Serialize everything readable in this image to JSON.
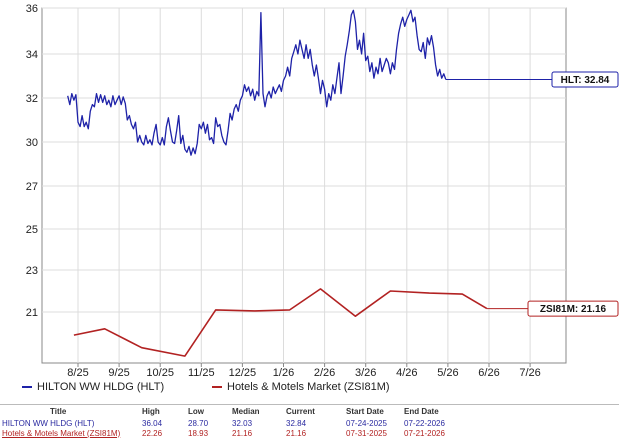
{
  "chart_data": {
    "type": "line",
    "x_ticks": [
      "8/25",
      "9/25",
      "10/25",
      "11/25",
      "12/25",
      "1/26",
      "2/26",
      "3/26",
      "4/26",
      "5/26",
      "6/26",
      "7/26"
    ],
    "y_ticks": [
      "21",
      "23",
      "25",
      "27",
      "30",
      "32",
      "34",
      "36"
    ],
    "ylim": [
      19,
      36
    ],
    "grid": true,
    "legend_position": "bottom",
    "series": [
      {
        "name": "HILTON WW HLDG (HLT)",
        "color": "#1e22a8",
        "callout": "HLT: 32.84",
        "points": [
          [
            -0.25,
            32.1
          ],
          [
            -0.2,
            31.7
          ],
          [
            -0.15,
            32.2
          ],
          [
            -0.1,
            31.9
          ],
          [
            -0.05,
            32.15
          ],
          [
            0.0,
            30.9
          ],
          [
            0.05,
            30.7
          ],
          [
            0.1,
            31.2
          ],
          [
            0.15,
            30.7
          ],
          [
            0.2,
            30.9
          ],
          [
            0.25,
            30.6
          ],
          [
            0.3,
            31.4
          ],
          [
            0.35,
            31.7
          ],
          [
            0.4,
            31.6
          ],
          [
            0.45,
            32.2
          ],
          [
            0.5,
            31.8
          ],
          [
            0.55,
            32.15
          ],
          [
            0.6,
            31.8
          ],
          [
            0.65,
            32.1
          ],
          [
            0.7,
            31.7
          ],
          [
            0.75,
            31.9
          ],
          [
            0.8,
            31.6
          ],
          [
            0.85,
            32.1
          ],
          [
            0.9,
            31.7
          ],
          [
            0.95,
            31.9
          ],
          [
            1.0,
            32.1
          ],
          [
            1.05,
            31.7
          ],
          [
            1.1,
            32.05
          ],
          [
            1.15,
            31.75
          ],
          [
            1.2,
            31.0
          ],
          [
            1.25,
            31.2
          ],
          [
            1.3,
            30.8
          ],
          [
            1.35,
            30.6
          ],
          [
            1.4,
            30.9
          ],
          [
            1.45,
            30.0
          ],
          [
            1.5,
            30.3
          ],
          [
            1.55,
            30.0
          ],
          [
            1.6,
            29.8
          ],
          [
            1.65,
            30.3
          ],
          [
            1.7,
            29.9
          ],
          [
            1.75,
            30.1
          ],
          [
            1.8,
            29.8
          ],
          [
            1.85,
            30.4
          ],
          [
            1.9,
            30.8
          ],
          [
            1.95,
            30.0
          ],
          [
            2.0,
            29.8
          ],
          [
            2.05,
            30.2
          ],
          [
            2.1,
            29.8
          ],
          [
            2.15,
            30.7
          ],
          [
            2.2,
            31.1
          ],
          [
            2.25,
            30.5
          ],
          [
            2.3,
            30.0
          ],
          [
            2.35,
            29.9
          ],
          [
            2.4,
            30.5
          ],
          [
            2.45,
            31.2
          ],
          [
            2.5,
            29.9
          ],
          [
            2.55,
            30.3
          ],
          [
            2.6,
            29.5
          ],
          [
            2.65,
            29.3
          ],
          [
            2.7,
            29.7
          ],
          [
            2.75,
            29.1
          ],
          [
            2.8,
            29.6
          ],
          [
            2.85,
            29.2
          ],
          [
            2.9,
            29.9
          ],
          [
            2.95,
            30.8
          ],
          [
            3.0,
            30.6
          ],
          [
            3.05,
            30.9
          ],
          [
            3.1,
            30.4
          ],
          [
            3.15,
            30.8
          ],
          [
            3.2,
            30.1
          ],
          [
            3.25,
            30.2
          ],
          [
            3.3,
            29.9
          ],
          [
            3.35,
            31.1
          ],
          [
            3.4,
            30.7
          ],
          [
            3.45,
            30.8
          ],
          [
            3.5,
            30.3
          ],
          [
            3.55,
            30.0
          ],
          [
            3.6,
            29.8
          ],
          [
            3.65,
            30.5
          ],
          [
            3.7,
            31.3
          ],
          [
            3.75,
            31.0
          ],
          [
            3.8,
            31.5
          ],
          [
            3.85,
            31.7
          ],
          [
            3.9,
            31.4
          ],
          [
            3.95,
            31.9
          ],
          [
            4.0,
            32.1
          ],
          [
            4.05,
            32.6
          ],
          [
            4.1,
            32.3
          ],
          [
            4.15,
            32.5
          ],
          [
            4.2,
            32.1
          ],
          [
            4.25,
            32.4
          ],
          [
            4.3,
            31.9
          ],
          [
            4.35,
            32.3
          ],
          [
            4.4,
            32.1
          ],
          [
            4.45,
            35.8
          ],
          [
            4.5,
            32.2
          ],
          [
            4.55,
            31.6
          ],
          [
            4.6,
            32.1
          ],
          [
            4.65,
            32.3
          ],
          [
            4.7,
            32.0
          ],
          [
            4.75,
            32.5
          ],
          [
            4.8,
            32.2
          ],
          [
            4.85,
            32.4
          ],
          [
            4.9,
            32.6
          ],
          [
            4.95,
            32.3
          ],
          [
            5.0,
            32.8
          ],
          [
            5.05,
            33.0
          ],
          [
            5.1,
            33.4
          ],
          [
            5.15,
            33.0
          ],
          [
            5.2,
            33.8
          ],
          [
            5.25,
            34.1
          ],
          [
            5.3,
            34.4
          ],
          [
            5.35,
            34.0
          ],
          [
            5.4,
            34.6
          ],
          [
            5.45,
            34.2
          ],
          [
            5.5,
            33.8
          ],
          [
            5.55,
            34.4
          ],
          [
            5.6,
            33.8
          ],
          [
            5.65,
            34.2
          ],
          [
            5.7,
            33.5
          ],
          [
            5.75,
            33.0
          ],
          [
            5.8,
            33.5
          ],
          [
            5.85,
            32.9
          ],
          [
            5.9,
            32.2
          ],
          [
            5.95,
            32.8
          ],
          [
            6.0,
            32.4
          ],
          [
            6.05,
            31.6
          ],
          [
            6.1,
            32.2
          ],
          [
            6.15,
            31.9
          ],
          [
            6.2,
            32.6
          ],
          [
            6.25,
            32.2
          ],
          [
            6.3,
            32.9
          ],
          [
            6.35,
            33.6
          ],
          [
            6.4,
            32.2
          ],
          [
            6.45,
            33.0
          ],
          [
            6.5,
            33.9
          ],
          [
            6.55,
            34.4
          ],
          [
            6.6,
            35.0
          ],
          [
            6.65,
            35.7
          ],
          [
            6.7,
            35.9
          ],
          [
            6.75,
            35.4
          ],
          [
            6.8,
            34.2
          ],
          [
            6.85,
            34.6
          ],
          [
            6.9,
            34.0
          ],
          [
            6.95,
            34.9
          ],
          [
            7.0,
            33.7
          ],
          [
            7.05,
            33.9
          ],
          [
            7.1,
            33.2
          ],
          [
            7.15,
            33.6
          ],
          [
            7.2,
            32.9
          ],
          [
            7.25,
            33.4
          ],
          [
            7.3,
            33.1
          ],
          [
            7.35,
            33.8
          ],
          [
            7.4,
            33.2
          ],
          [
            7.45,
            33.5
          ],
          [
            7.5,
            33.8
          ],
          [
            7.55,
            33.6
          ],
          [
            7.6,
            33.1
          ],
          [
            7.65,
            33.6
          ],
          [
            7.7,
            33.3
          ],
          [
            7.75,
            34.2
          ],
          [
            7.8,
            34.9
          ],
          [
            7.85,
            35.3
          ],
          [
            7.9,
            35.6
          ],
          [
            7.95,
            35.2
          ],
          [
            8.0,
            35.5
          ],
          [
            8.05,
            35.7
          ],
          [
            8.1,
            35.9
          ],
          [
            8.15,
            35.4
          ],
          [
            8.2,
            35.6
          ],
          [
            8.25,
            34.8
          ],
          [
            8.3,
            34.2
          ],
          [
            8.35,
            34.1
          ],
          [
            8.4,
            34.5
          ],
          [
            8.45,
            33.8
          ],
          [
            8.5,
            34.7
          ],
          [
            8.55,
            34.4
          ],
          [
            8.6,
            34.8
          ],
          [
            8.65,
            34.3
          ],
          [
            8.7,
            33.5
          ],
          [
            8.75,
            33.0
          ],
          [
            8.8,
            33.3
          ],
          [
            8.85,
            32.9
          ],
          [
            8.9,
            33.1
          ],
          [
            8.95,
            32.84
          ]
        ]
      },
      {
        "name": "Hotels & Motels Market (ZSI81M)",
        "color": "#b22222",
        "callout": "ZSI81M: 21.16",
        "points": [
          [
            -0.1,
            19.9
          ],
          [
            0.65,
            20.2
          ],
          [
            1.55,
            19.3
          ],
          [
            2.6,
            18.9
          ],
          [
            3.35,
            21.1
          ],
          [
            4.3,
            21.05
          ],
          [
            5.15,
            21.1
          ],
          [
            5.9,
            22.1
          ],
          [
            6.75,
            20.8
          ],
          [
            7.6,
            22.0
          ],
          [
            8.55,
            21.9
          ],
          [
            9.35,
            21.85
          ],
          [
            9.95,
            21.16
          ]
        ]
      }
    ]
  },
  "stats": {
    "headers": [
      "Title",
      "High",
      "Low",
      "Median",
      "Current",
      "Start Date",
      "End Date"
    ],
    "rows": [
      [
        "HILTON WW HLDG (HLT)",
        "36.04",
        "28.70",
        "32.03",
        "32.84",
        "07-24-2025",
        "07-22-2026"
      ],
      [
        "Hotels & Motels Market (ZSI81M)",
        "22.26",
        "18.93",
        "21.16",
        "21.16",
        "07-31-2025",
        "07-21-2026"
      ]
    ]
  }
}
